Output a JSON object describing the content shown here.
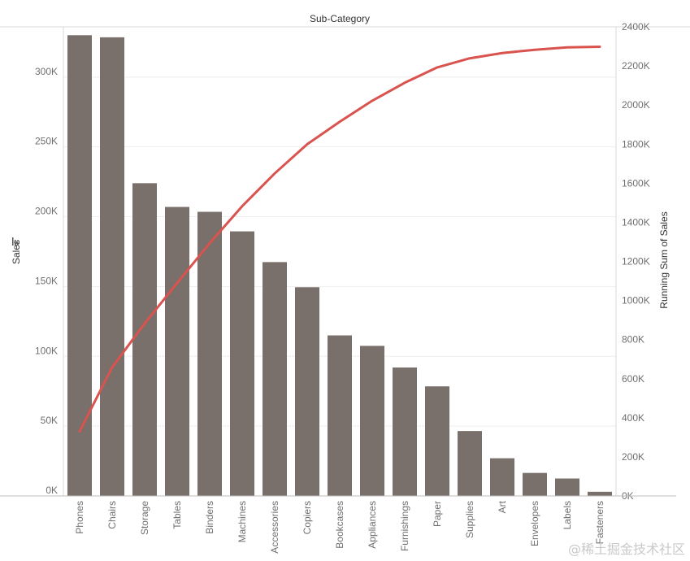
{
  "chart_data": {
    "type": "bar",
    "title": "",
    "header": "Sub-Category",
    "categories": [
      "Phones",
      "Chairs",
      "Storage",
      "Tables",
      "Binders",
      "Machines",
      "Accessories",
      "Copiers",
      "Bookcases",
      "Appliances",
      "Furnishings",
      "Paper",
      "Supplies",
      "Art",
      "Envelopes",
      "Labels",
      "Fasteners"
    ],
    "ylabel": "Sales",
    "ylabel_right": "Running Sum of Sales",
    "ylim": [
      0,
      336000
    ],
    "ylim_right": [
      0,
      2400000
    ],
    "yticks_left": [
      "0K",
      "50K",
      "100K",
      "150K",
      "200K",
      "250K",
      "300K"
    ],
    "yticks_right": [
      "0K",
      "200K",
      "400K",
      "600K",
      "800K",
      "1000K",
      "1200K",
      "1400K",
      "1600K",
      "1800K",
      "2000K",
      "2200K",
      "2400K"
    ],
    "series": [
      {
        "name": "Sales",
        "type": "bar",
        "color": "#796f6b",
        "values": [
          330000,
          328500,
          224000,
          207000,
          203500,
          189500,
          167500,
          149500,
          115000,
          107500,
          92000,
          78500,
          46500,
          27000,
          16500,
          12500,
          3000
        ]
      },
      {
        "name": "Running Sum of Sales",
        "type": "line",
        "axis": "right",
        "color": "#d9534f",
        "values": [
          330000,
          658500,
          882500,
          1089500,
          1293000,
          1482500,
          1650000,
          1799500,
          1914500,
          2022000,
          2114000,
          2192500,
          2239000,
          2266000,
          2282500,
          2295000,
          2298000
        ]
      }
    ],
    "grid": true,
    "legend": "none"
  },
  "watermark": "@稀土掘金技术社区"
}
